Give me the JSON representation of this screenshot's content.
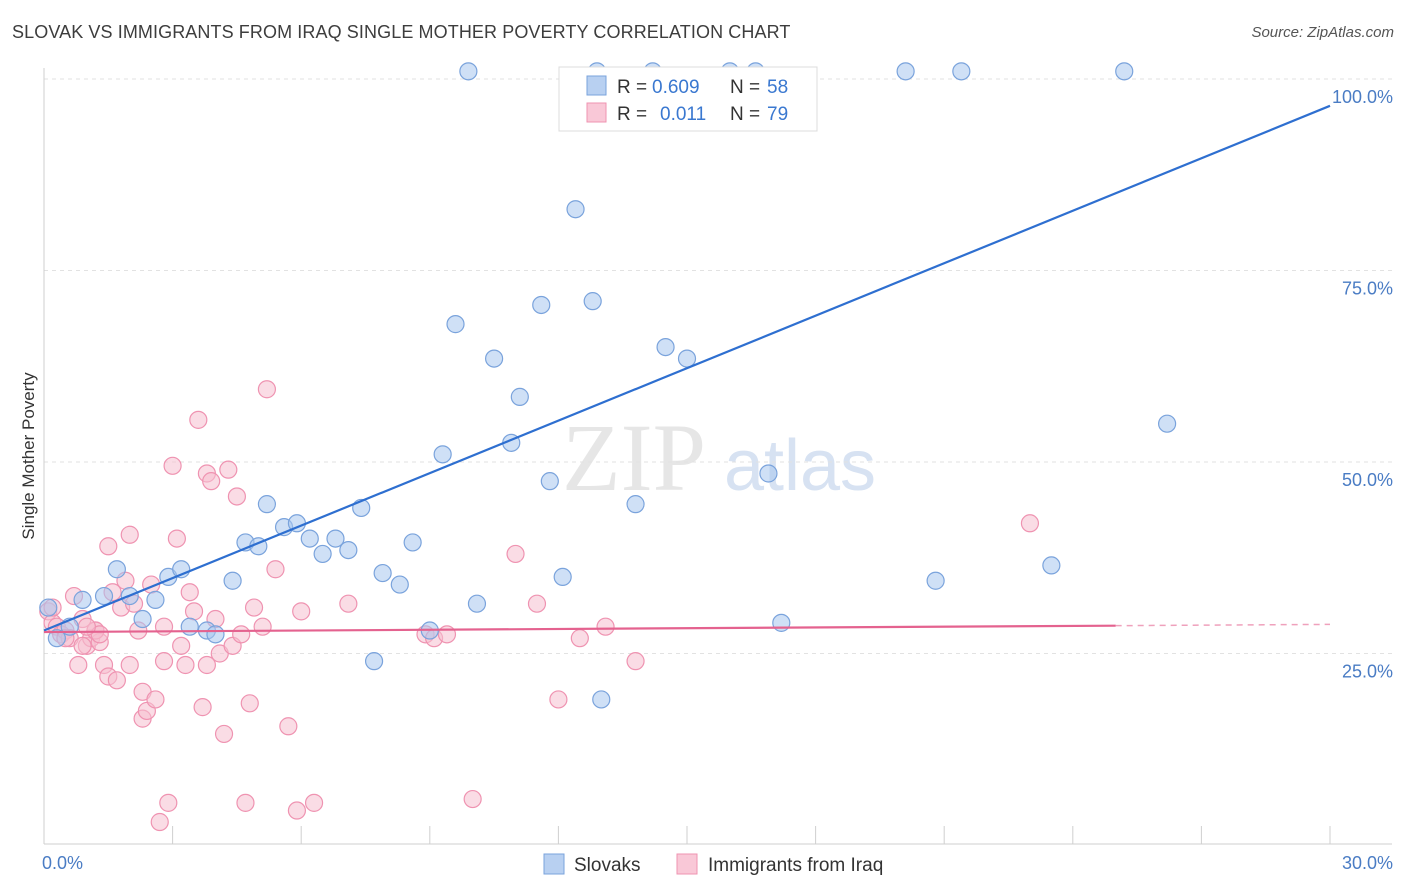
{
  "title": "SLOVAK VS IMMIGRANTS FROM IRAQ SINGLE MOTHER POVERTY CORRELATION CHART",
  "source": "Source: ZipAtlas.com",
  "watermark": {
    "zip": "ZIP",
    "atlas": "atlas"
  },
  "chart_data": {
    "type": "scatter",
    "title": "SLOVAK VS IMMIGRANTS FROM IRAQ SINGLE MOTHER POVERTY CORRELATION CHART",
    "xlabel": "",
    "ylabel": "Single Mother Poverty",
    "xlim": [
      0,
      30
    ],
    "ylim": [
      0,
      100
    ],
    "x_tick_labels": [
      "0.0%",
      "30.0%"
    ],
    "y_ticks": [
      25,
      50,
      75,
      100
    ],
    "y_tick_labels": [
      "25.0%",
      "50.0%",
      "75.0%",
      "100.0%"
    ],
    "grid": true,
    "legend_position": "top-center",
    "series": [
      {
        "name": "Slovaks",
        "color": "#a8c6ee",
        "stroke": "#7aa3dc",
        "line_color": "#2e6fd0",
        "R": "0.609",
        "N": "58",
        "trend": {
          "x": [
            0,
            30
          ],
          "y": [
            28.0,
            96.5
          ],
          "dashed_from": null
        },
        "points": [
          [
            0.1,
            31.0
          ],
          [
            0.3,
            27.0
          ],
          [
            0.6,
            28.5
          ],
          [
            0.9,
            32.0
          ],
          [
            1.4,
            32.5
          ],
          [
            1.7,
            36.0
          ],
          [
            2.0,
            32.5
          ],
          [
            2.3,
            29.5
          ],
          [
            2.6,
            32.0
          ],
          [
            2.9,
            35.0
          ],
          [
            3.2,
            36.0
          ],
          [
            3.4,
            28.5
          ],
          [
            3.8,
            28.0
          ],
          [
            4.0,
            27.5
          ],
          [
            4.4,
            34.5
          ],
          [
            4.7,
            39.5
          ],
          [
            5.0,
            39.0
          ],
          [
            5.2,
            44.5
          ],
          [
            5.6,
            41.5
          ],
          [
            5.9,
            42.0
          ],
          [
            6.2,
            40.0
          ],
          [
            6.5,
            38.0
          ],
          [
            6.8,
            40.0
          ],
          [
            7.1,
            38.5
          ],
          [
            7.4,
            44.0
          ],
          [
            7.9,
            35.5
          ],
          [
            8.3,
            34.0
          ],
          [
            8.6,
            39.5
          ],
          [
            9.0,
            28.0
          ],
          [
            7.7,
            24.0
          ],
          [
            9.3,
            51.0
          ],
          [
            9.6,
            68.0
          ],
          [
            9.9,
            101.0
          ],
          [
            10.1,
            31.5
          ],
          [
            10.5,
            63.5
          ],
          [
            10.9,
            52.5
          ],
          [
            11.1,
            58.5
          ],
          [
            11.6,
            70.5
          ],
          [
            11.8,
            47.5
          ],
          [
            12.1,
            35.0
          ],
          [
            12.4,
            83.0
          ],
          [
            12.8,
            71.0
          ],
          [
            13.0,
            19.0
          ],
          [
            13.8,
            44.5
          ],
          [
            14.2,
            101.0
          ],
          [
            14.5,
            65.0
          ],
          [
            15.0,
            63.5
          ],
          [
            16.0,
            101.0
          ],
          [
            16.6,
            101.0
          ],
          [
            16.9,
            48.5
          ],
          [
            17.2,
            29.0
          ],
          [
            20.1,
            101.0
          ],
          [
            20.8,
            34.5
          ],
          [
            21.4,
            101.0
          ],
          [
            23.5,
            36.5
          ],
          [
            25.2,
            101.0
          ],
          [
            26.2,
            55.0
          ],
          [
            12.9,
            101.0
          ]
        ]
      },
      {
        "name": "Immigrants from Iraq",
        "color": "#f6bfd0",
        "stroke": "#ef93b1",
        "line_color": "#e4628f",
        "R": "0.011",
        "N": "79",
        "trend": {
          "x": [
            0,
            30
          ],
          "y": [
            27.8,
            28.8
          ],
          "dashed_from": 25.0
        },
        "points": [
          [
            0.1,
            30.5
          ],
          [
            0.2,
            29.0
          ],
          [
            0.3,
            28.5
          ],
          [
            0.4,
            27.5
          ],
          [
            0.5,
            28.0
          ],
          [
            0.6,
            27.0
          ],
          [
            0.7,
            32.5
          ],
          [
            0.8,
            23.5
          ],
          [
            0.9,
            29.5
          ],
          [
            1.0,
            26.0
          ],
          [
            1.1,
            27.0
          ],
          [
            1.2,
            28.0
          ],
          [
            1.3,
            26.5
          ],
          [
            1.4,
            23.5
          ],
          [
            1.5,
            22.0
          ],
          [
            1.6,
            33.0
          ],
          [
            1.7,
            21.5
          ],
          [
            1.5,
            39.0
          ],
          [
            1.8,
            31.0
          ],
          [
            1.9,
            34.5
          ],
          [
            2.0,
            23.5
          ],
          [
            2.1,
            31.5
          ],
          [
            2.2,
            28.0
          ],
          [
            2.0,
            40.5
          ],
          [
            2.3,
            16.5
          ],
          [
            2.3,
            20.0
          ],
          [
            2.4,
            17.5
          ],
          [
            2.5,
            34.0
          ],
          [
            2.6,
            19.0
          ],
          [
            2.7,
            3.0
          ],
          [
            2.8,
            28.5
          ],
          [
            2.8,
            24.0
          ],
          [
            2.9,
            5.5
          ],
          [
            3.0,
            49.5
          ],
          [
            3.1,
            40.0
          ],
          [
            3.2,
            26.0
          ],
          [
            3.3,
            23.5
          ],
          [
            3.4,
            33.0
          ],
          [
            3.5,
            30.5
          ],
          [
            3.6,
            55.5
          ],
          [
            3.7,
            18.0
          ],
          [
            3.8,
            48.5
          ],
          [
            3.8,
            23.5
          ],
          [
            3.9,
            47.5
          ],
          [
            4.0,
            29.5
          ],
          [
            4.1,
            25.0
          ],
          [
            4.2,
            14.5
          ],
          [
            4.3,
            49.0
          ],
          [
            4.4,
            26.0
          ],
          [
            4.5,
            45.5
          ],
          [
            4.6,
            27.5
          ],
          [
            4.7,
            5.5
          ],
          [
            4.8,
            18.5
          ],
          [
            4.9,
            31.0
          ],
          [
            5.1,
            28.5
          ],
          [
            5.2,
            59.5
          ],
          [
            5.4,
            36.0
          ],
          [
            5.7,
            15.5
          ],
          [
            5.9,
            4.5
          ],
          [
            6.0,
            30.5
          ],
          [
            6.3,
            5.5
          ],
          [
            7.1,
            31.5
          ],
          [
            8.9,
            27.5
          ],
          [
            9.1,
            27.0
          ],
          [
            9.4,
            27.5
          ],
          [
            10.0,
            6.0
          ],
          [
            11.0,
            38.0
          ],
          [
            11.5,
            31.5
          ],
          [
            12.0,
            19.0
          ],
          [
            12.5,
            27.0
          ],
          [
            13.1,
            28.5
          ],
          [
            13.8,
            24.0
          ],
          [
            1.2,
            28.0
          ],
          [
            1.3,
            27.5
          ],
          [
            0.9,
            26.0
          ],
          [
            0.2,
            31.0
          ],
          [
            23.0,
            42.0
          ],
          [
            1.0,
            28.5
          ],
          [
            0.5,
            27.0
          ]
        ]
      }
    ]
  },
  "legend": {
    "r_label": "R =",
    "n_label": "N ="
  }
}
